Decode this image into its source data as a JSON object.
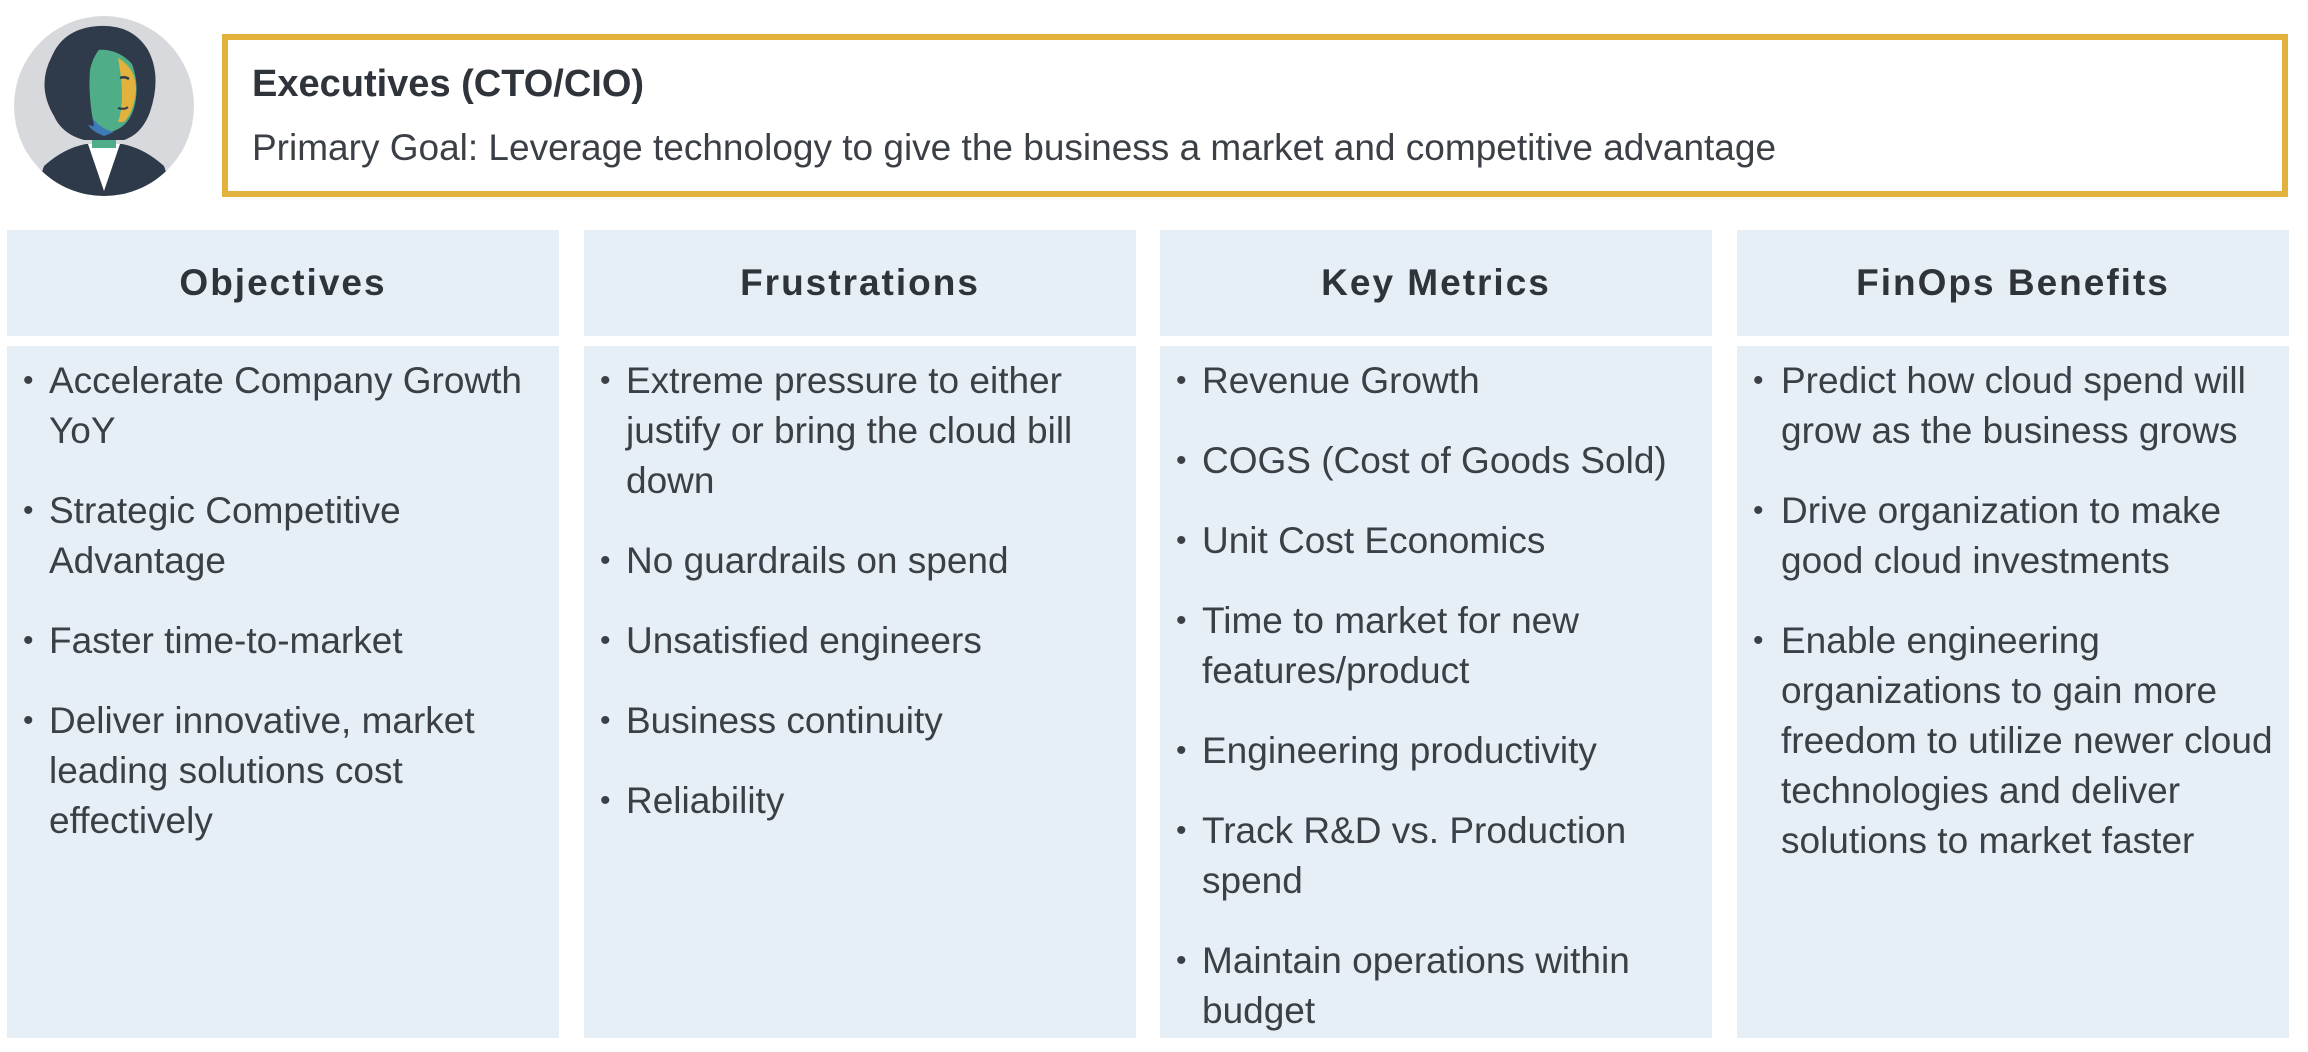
{
  "persona": {
    "title": "Executives (CTO/CIO)",
    "goal": "Primary Goal: Leverage technology to give the business a market and competitive advantage",
    "avatar_icon": "executive-avatar-icon",
    "accent_color": "#e3b23c"
  },
  "columns": [
    {
      "heading": "Objectives",
      "items": [
        "Accelerate Company Growth YoY",
        "Strategic Competitive Advantage",
        "Faster time-to-market",
        "Deliver innovative, market leading solutions cost effectively"
      ]
    },
    {
      "heading": "Frustrations",
      "items": [
        "Extreme pressure to either justify or bring the cloud bill down",
        "No guardrails on spend",
        "Unsatisfied engineers",
        "Business continuity",
        "Reliability"
      ]
    },
    {
      "heading": "Key Metrics",
      "items": [
        "Revenue Growth",
        "COGS (Cost of Goods Sold)",
        "Unit Cost Economics",
        "Time to market for new features/product",
        "Engineering productivity",
        "Track R&D vs. Production spend",
        "Maintain operations within budget"
      ]
    },
    {
      "heading": "FinOps Benefits",
      "items": [
        "Predict how cloud spend will grow as the business grows",
        "Drive organization to make good cloud investments",
        "Enable engineering organizations to gain more freedom to utilize newer cloud technologies and deliver solutions to market faster"
      ]
    }
  ],
  "bullet_glyph": "•",
  "panel_color": "#e6eff5"
}
